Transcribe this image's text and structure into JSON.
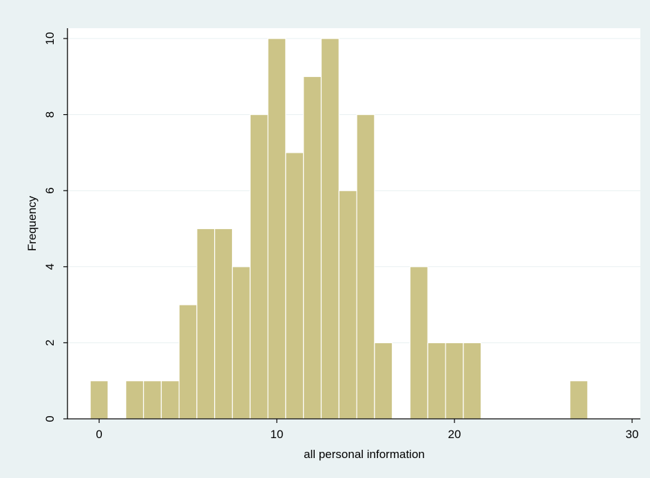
{
  "chart_data": {
    "type": "bar",
    "xlabel": "all personal information",
    "ylabel": "Frequency",
    "xlim": [
      -2,
      30
    ],
    "ylim": [
      0,
      10
    ],
    "x_ticks": [
      0,
      10,
      20,
      30
    ],
    "y_ticks": [
      0,
      2,
      4,
      6,
      8,
      10
    ],
    "bin_width": 1,
    "grid": true,
    "colors": {
      "background": "#eaf2f3",
      "plot_background": "#ffffff",
      "bar_fill": "#ccc487",
      "bar_edge": "#ffffff",
      "grid": "#e7eff0",
      "axis": "#000000"
    },
    "bars": [
      {
        "x": 0,
        "value": 1
      },
      {
        "x": 2,
        "value": 1
      },
      {
        "x": 3,
        "value": 1
      },
      {
        "x": 4,
        "value": 1
      },
      {
        "x": 5,
        "value": 3
      },
      {
        "x": 6,
        "value": 5
      },
      {
        "x": 7,
        "value": 5
      },
      {
        "x": 8,
        "value": 4
      },
      {
        "x": 9,
        "value": 8
      },
      {
        "x": 10,
        "value": 10
      },
      {
        "x": 11,
        "value": 7
      },
      {
        "x": 12,
        "value": 9
      },
      {
        "x": 13,
        "value": 10
      },
      {
        "x": 14,
        "value": 6
      },
      {
        "x": 15,
        "value": 8
      },
      {
        "x": 16,
        "value": 2
      },
      {
        "x": 18,
        "value": 4
      },
      {
        "x": 19,
        "value": 2
      },
      {
        "x": 20,
        "value": 2
      },
      {
        "x": 21,
        "value": 2
      },
      {
        "x": 27,
        "value": 1
      }
    ]
  }
}
